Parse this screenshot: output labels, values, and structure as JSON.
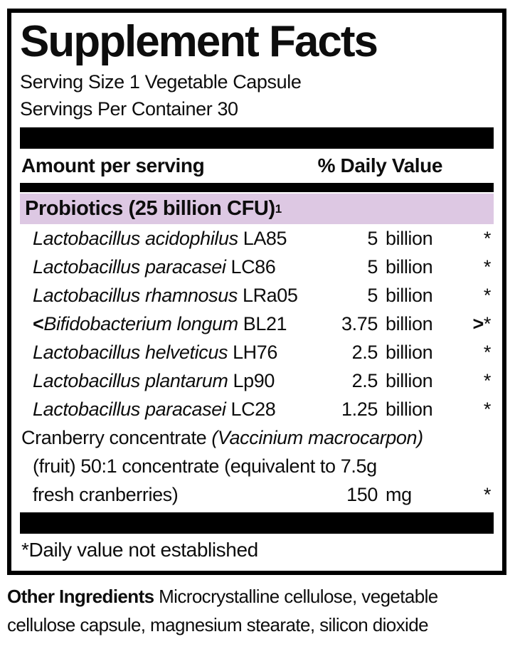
{
  "panel": {
    "title": "Supplement Facts",
    "serving_size": "Serving Size 1 Vegetable Capsule",
    "servings_per_container": "Servings Per Container 30",
    "columns": {
      "amount": "Amount per serving",
      "daily_value": "% Daily Value"
    },
    "group_header": {
      "label": "Probiotics (25 billion CFU)",
      "sup": "1"
    },
    "rows": [
      {
        "prefix": "",
        "species": "Lactobacillus acidophilus",
        "code": "LA85",
        "amount_value": "5",
        "amount_unit": "billion",
        "dv_prefix": "",
        "dv": "*"
      },
      {
        "prefix": "",
        "species": "Lactobacillus paracasei",
        "code": "LC86",
        "amount_value": "5",
        "amount_unit": "billion",
        "dv_prefix": "",
        "dv": "*"
      },
      {
        "prefix": "",
        "species": "Lactobacillus rhamnosus",
        "code": "LRa05",
        "amount_value": "5",
        "amount_unit": "billion",
        "dv_prefix": "",
        "dv": "*"
      },
      {
        "prefix": "<",
        "species": "Bifidobacterium longum",
        "code": "BL21",
        "amount_value": "3.75",
        "amount_unit": "billion",
        "dv_prefix": ">",
        "dv": "*"
      },
      {
        "prefix": "",
        "species": "Lactobacillus helveticus",
        "code": "LH76",
        "amount_value": "2.5",
        "amount_unit": "billion",
        "dv_prefix": "",
        "dv": "*"
      },
      {
        "prefix": "",
        "species": "Lactobacillus plantarum",
        "code": "Lp90",
        "amount_value": "2.5",
        "amount_unit": "billion",
        "dv_prefix": "",
        "dv": "*"
      },
      {
        "prefix": "",
        "species": "Lactobacillus paracasei",
        "code": "LC28",
        "amount_value": "1.25",
        "amount_unit": "billion",
        "dv_prefix": "",
        "dv": "*"
      }
    ],
    "cranberry": {
      "line1_regular": "Cranberry concentrate ",
      "line1_italic": "(Vaccinium macrocarpon)",
      "line2": "(fruit) 50:1 concentrate (equivalent to 7.5g",
      "line3": "fresh cranberries)",
      "amount_value": "150",
      "amount_unit": "mg",
      "dv": "*"
    },
    "footnote": "*Daily value not established"
  },
  "other_ingredients": {
    "label": "Other Ingredients",
    "line1_rest": " Microcrystalline cellulose, vegetable",
    "line2": "cellulose capsule, magnesium stearate, silicon dioxide"
  },
  "colors": {
    "highlight_purple": "#ddc8e3",
    "bar_black": "#000000"
  }
}
